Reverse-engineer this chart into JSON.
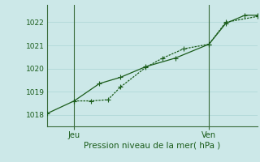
{
  "xlabel": "Pression niveau de la mer( hPa )",
  "bg_color": "#cce8e8",
  "grid_color": "#b0d8d8",
  "line_color": "#1a5c1a",
  "vline_color": "#3a6b3a",
  "ylim": [
    1017.5,
    1022.75
  ],
  "xlim": [
    0,
    10
  ],
  "yticks": [
    1018,
    1019,
    1020,
    1021,
    1022
  ],
  "xtick_positions": [
    1.3,
    7.7
  ],
  "xtick_labels": [
    "Jeu",
    "Ven"
  ],
  "vline_positions": [
    1.3,
    7.7
  ],
  "line1_x": [
    0.0,
    1.3,
    2.5,
    3.5,
    4.7,
    6.1,
    7.7,
    8.5,
    9.4,
    10.0
  ],
  "line1_y": [
    1018.05,
    1018.6,
    1019.35,
    1019.62,
    1020.08,
    1020.45,
    1021.05,
    1021.95,
    1022.3,
    1022.3
  ],
  "line2_x": [
    1.3,
    2.1,
    2.9,
    3.5,
    4.7,
    5.5,
    6.5,
    7.7,
    8.5,
    10.0
  ],
  "line2_y": [
    1018.6,
    1018.6,
    1018.65,
    1019.2,
    1020.05,
    1020.45,
    1020.85,
    1021.05,
    1022.0,
    1022.25
  ],
  "marker_size": 2.5,
  "linewidth": 0.9
}
